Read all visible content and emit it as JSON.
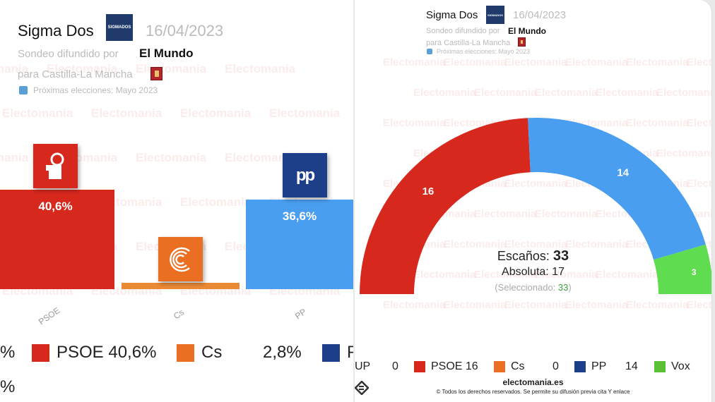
{
  "left": {
    "pollster": "Sigma Dos",
    "pollster_logo": "SIGMADOS",
    "date": "16/04/2023",
    "published_by_label": "Sondeo difundido por",
    "publisher": "El Mundo",
    "region_label": "para Castilla-La Mancha",
    "next_elections": "Próximas elecciones: Mayo 2023",
    "watermark": "Electomania",
    "edge_legend_fragment_1": "%",
    "edge_legend_fragment_2": "%",
    "legend": [
      {
        "text": "PSOE 40,6%",
        "icon": "psoe-logo-icon",
        "color": "#d7281e"
      },
      {
        "text": "Cs",
        "icon": "cs-logo-icon",
        "color": "#eb6f22"
      },
      {
        "text": "2,8%",
        "icon": "",
        "color": ""
      },
      {
        "text": "P",
        "icon": "pp-logo-icon",
        "color": "#1d3f8a"
      }
    ]
  },
  "right": {
    "pollster": "Sigma Dos",
    "pollster_logo": "SIGMADOS",
    "date": "16/04/2023",
    "published_by_label": "Sondeo difundido por",
    "publisher": "El Mundo",
    "region_label": "para Castilla-La Mancha",
    "next_elections": "Próximas elecciones: Mayo 2023",
    "seats_label": "Escaños:",
    "seats_total": "33",
    "majority_label": "Absoluta: 17",
    "selected_label": "(Seleccionado:",
    "selected_value": "33",
    "selected_close": ")",
    "site": "electomania.es",
    "copyright": "© Todos los derechos reservados. Se permite su difusión previa cita Y enlace",
    "legend": [
      {
        "text": "UP",
        "value": "0",
        "icon": "",
        "color": ""
      },
      {
        "text": "PSOE 16",
        "value": "",
        "icon": "psoe-logo-icon",
        "color": "#d7281e"
      },
      {
        "text": "Cs",
        "value": "0",
        "icon": "cs-logo-icon",
        "color": "#eb6f22"
      },
      {
        "text": "PP",
        "value": "14",
        "icon": "pp-logo-icon",
        "color": "#1d3f8a"
      },
      {
        "text": "Vox",
        "value": "",
        "icon": "vox-logo-icon",
        "color": "#5ac035"
      }
    ]
  },
  "chart_data": [
    {
      "type": "bar",
      "categories": [
        "PSOE",
        "Cs",
        "PP"
      ],
      "values": [
        40.6,
        2.8,
        36.6
      ],
      "data_labels": [
        "40,6%",
        "",
        "36,6%"
      ],
      "colors": [
        "#d7281e",
        "#eb8a35",
        "#4a9ef0"
      ],
      "unit": "%",
      "title": "",
      "xlabel": "",
      "ylabel": ""
    },
    {
      "type": "pie",
      "variant": "parliament-hemicycle",
      "categories": [
        "PSOE",
        "PP",
        "Vox"
      ],
      "values": [
        16,
        14,
        3
      ],
      "data_labels": [
        "16",
        "14",
        "3"
      ],
      "colors": [
        "#d7281e",
        "#4a9ef0",
        "#5fdc4f"
      ],
      "total": 33,
      "majority": 17
    }
  ]
}
